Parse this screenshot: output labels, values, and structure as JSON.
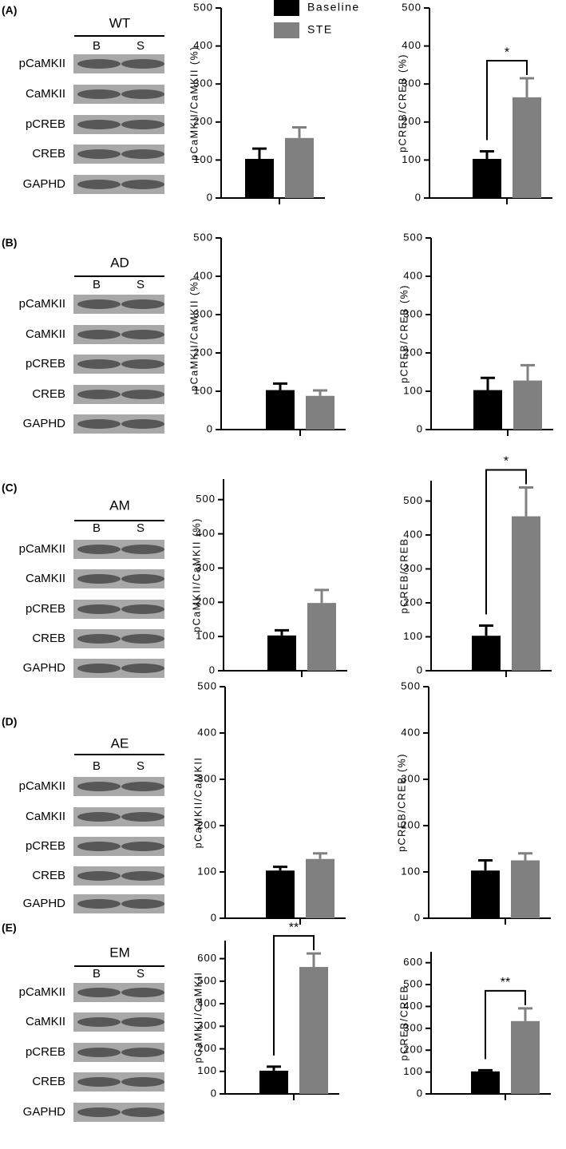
{
  "panels": [
    {
      "label": "(A)",
      "group": "WT",
      "lanes": [
        "B",
        "S"
      ],
      "rows": [
        "pCaMKII",
        "CaMKII",
        "pCREB",
        "CREB",
        "GAPHD"
      ]
    },
    {
      "label": "(B)",
      "group": "AD",
      "lanes": [
        "B",
        "S"
      ],
      "rows": [
        "pCaMKII",
        "CaMKII",
        "pCREB",
        "CREB",
        "GAPHD"
      ]
    },
    {
      "label": "(C)",
      "group": "AM",
      "lanes": [
        "B",
        "S"
      ],
      "rows": [
        "pCaMKII",
        "CaMKII",
        "pCREB",
        "CREB",
        "GAPHD"
      ]
    },
    {
      "label": "(D)",
      "group": "AE",
      "lanes": [
        "B",
        "S"
      ],
      "rows": [
        "pCaMKII",
        "CaMKII",
        "pCREB",
        "CREB",
        "GAPHD"
      ]
    },
    {
      "label": "(E)",
      "group": "EM",
      "lanes": [
        "B",
        "S"
      ],
      "rows": [
        "pCaMKII",
        "CaMKII",
        "pCREB",
        "CREB",
        "GAPHD"
      ]
    }
  ],
  "chart_data": [
    {
      "type": "bar",
      "ylabel": "pCaMKII/CaMKII (%)",
      "categories": [
        null
      ],
      "ylim": [
        0,
        500
      ],
      "yticks": [
        0,
        100,
        200,
        300,
        400,
        500
      ],
      "legend": "top-right",
      "series": [
        {
          "name": "Baseline",
          "color": "#000000",
          "values": [
            103
          ],
          "errors": [
            27
          ]
        },
        {
          "name": "STE",
          "color": "#808080",
          "values": [
            158
          ],
          "errors": [
            28
          ]
        }
      ]
    },
    {
      "type": "bar",
      "ylabel": "pCREB/CREB (%)",
      "categories": [
        null
      ],
      "ylim": [
        0,
        500
      ],
      "yticks": [
        0,
        100,
        200,
        300,
        400,
        500
      ],
      "annotation": "*",
      "series": [
        {
          "color": "#000000",
          "values": [
            103
          ],
          "errors": [
            20
          ]
        },
        {
          "color": "#808080",
          "values": [
            265
          ],
          "errors": [
            50
          ]
        }
      ]
    },
    {
      "type": "bar",
      "ylabel": "pCaMKII/CaMKII (%)",
      "categories": [
        null
      ],
      "ylim": [
        0,
        500
      ],
      "yticks": [
        0,
        100,
        200,
        300,
        400,
        500
      ],
      "series": [
        {
          "color": "#000000",
          "values": [
            103
          ],
          "errors": [
            17
          ]
        },
        {
          "color": "#808080",
          "values": [
            88
          ],
          "errors": [
            14
          ]
        }
      ]
    },
    {
      "type": "bar",
      "ylabel": "pCREB/CREB (%)",
      "categories": [
        null
      ],
      "ylim": [
        0,
        500
      ],
      "yticks": [
        0,
        100,
        200,
        300,
        400,
        500
      ],
      "series": [
        {
          "color": "#000000",
          "values": [
            103
          ],
          "errors": [
            32
          ]
        },
        {
          "color": "#808080",
          "values": [
            128
          ],
          "errors": [
            40
          ]
        }
      ]
    },
    {
      "type": "bar",
      "ylabel": "pCaMKII/CaMKII (%)",
      "categories": [
        null
      ],
      "ylim": [
        0,
        560
      ],
      "yticks": [
        0,
        100,
        200,
        300,
        400,
        500
      ],
      "series": [
        {
          "color": "#000000",
          "values": [
            103
          ],
          "errors": [
            15
          ]
        },
        {
          "color": "#808080",
          "values": [
            198
          ],
          "errors": [
            38
          ]
        }
      ]
    },
    {
      "type": "bar",
      "ylabel": "pCREB/CREB",
      "categories": [
        null
      ],
      "ylim": [
        0,
        560
      ],
      "yticks": [
        0,
        100,
        200,
        300,
        400,
        500
      ],
      "annotation": "*",
      "series": [
        {
          "color": "#000000",
          "values": [
            103
          ],
          "errors": [
            30
          ]
        },
        {
          "color": "#808080",
          "values": [
            455
          ],
          "errors": [
            85
          ]
        }
      ]
    },
    {
      "type": "bar",
      "ylabel": "pCaMKII/CaMKII",
      "categories": [
        null
      ],
      "ylim": [
        0,
        500
      ],
      "yticks": [
        0,
        100,
        200,
        300,
        400,
        500
      ],
      "series": [
        {
          "color": "#000000",
          "values": [
            103
          ],
          "errors": [
            8
          ]
        },
        {
          "color": "#808080",
          "values": [
            128
          ],
          "errors": [
            12
          ]
        }
      ]
    },
    {
      "type": "bar",
      "ylabel": "pCREB/CREB (%)",
      "categories": [
        null
      ],
      "ylim": [
        0,
        500
      ],
      "yticks": [
        0,
        100,
        200,
        300,
        400,
        500
      ],
      "series": [
        {
          "color": "#000000",
          "values": [
            103
          ],
          "errors": [
            22
          ]
        },
        {
          "color": "#808080",
          "values": [
            125
          ],
          "errors": [
            15
          ]
        }
      ]
    },
    {
      "type": "bar",
      "ylabel": "pCaMKII/CaMKII",
      "categories": [
        null
      ],
      "ylim": [
        0,
        680
      ],
      "yticks": [
        0,
        100,
        200,
        300,
        400,
        500,
        600
      ],
      "annotation": "**",
      "series": [
        {
          "color": "#000000",
          "values": [
            103
          ],
          "errors": [
            18
          ]
        },
        {
          "color": "#808080",
          "values": [
            563
          ],
          "errors": [
            60
          ]
        }
      ]
    },
    {
      "type": "bar",
      "ylabel": "pCREB/CREB",
      "categories": [
        null
      ],
      "ylim": [
        0,
        650
      ],
      "yticks": [
        0,
        100,
        200,
        300,
        400,
        500,
        600
      ],
      "annotation": "**",
      "series": [
        {
          "color": "#000000",
          "values": [
            103
          ],
          "errors": [
            5
          ]
        },
        {
          "color": "#808080",
          "values": [
            333
          ],
          "errors": [
            58
          ]
        }
      ]
    }
  ]
}
